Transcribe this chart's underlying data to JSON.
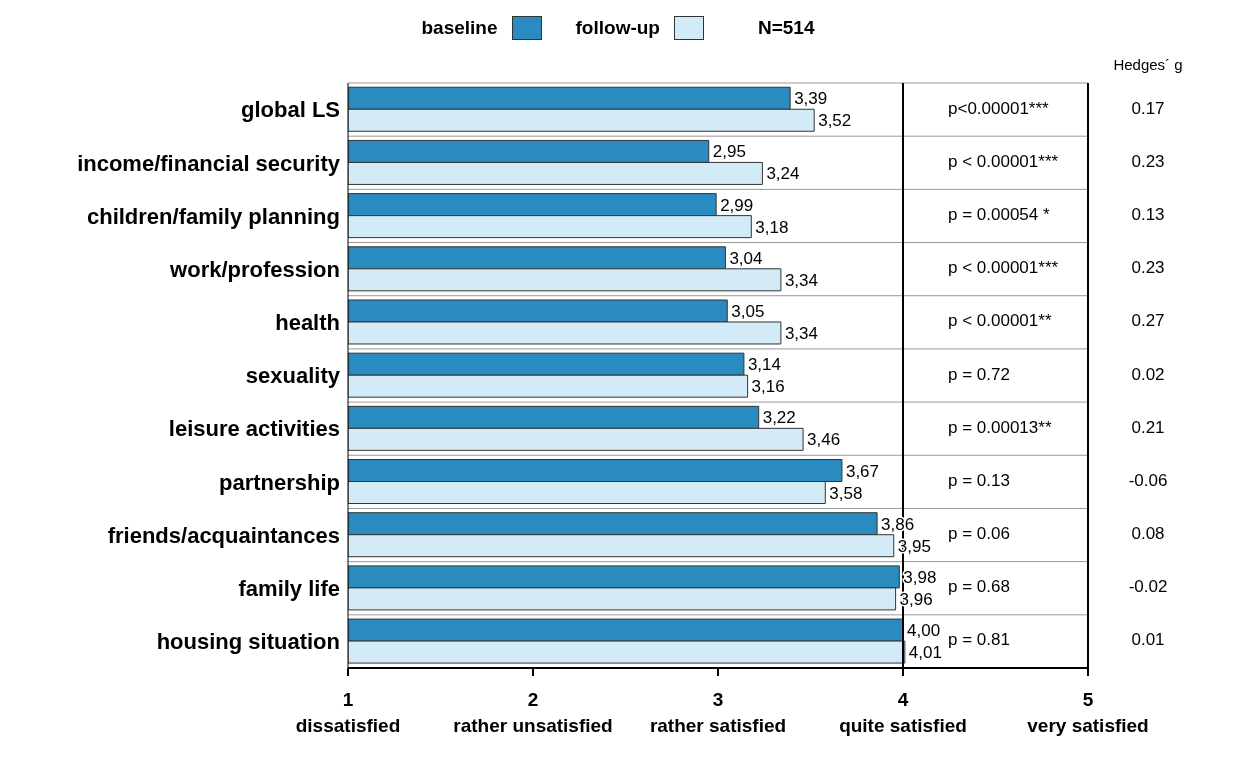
{
  "chart_data": {
    "type": "bar",
    "orientation": "horizontal",
    "subtitle": "N=514",
    "categories": [
      "global LS",
      "income/financial security",
      "children/family planning",
      "work/profession",
      "health",
      "sexuality",
      "leisure activities",
      "partnership",
      "friends/acquaintances",
      "family life",
      "housing situation"
    ],
    "series": [
      {
        "name": "baseline",
        "color": "#2a8bc0",
        "values": [
          3.39,
          2.95,
          2.99,
          3.04,
          3.05,
          3.14,
          3.22,
          3.67,
          3.86,
          3.98,
          4.0
        ],
        "value_labels": [
          "3,39",
          "2,95",
          "2,99",
          "3,04",
          "3,05",
          "3,14",
          "3,22",
          "3,67",
          "3,86",
          "3,98",
          "4,00"
        ]
      },
      {
        "name": "follow-up",
        "color": "#d3ebf7",
        "values": [
          3.52,
          3.24,
          3.18,
          3.34,
          3.34,
          3.16,
          3.46,
          3.58,
          3.95,
          3.96,
          4.01
        ],
        "value_labels": [
          "3,52",
          "3,24",
          "3,18",
          "3,34",
          "3,34",
          "3,16",
          "3,46",
          "3,58",
          "3,95",
          "3,96",
          "4,01"
        ]
      }
    ],
    "xlim": [
      1,
      5
    ],
    "xticks": [
      {
        "value": 1,
        "label": "1\ndissatisfied"
      },
      {
        "value": 2,
        "label": "2\nrather unsatisfied"
      },
      {
        "value": 3,
        "label": "3\nrather satisfied"
      },
      {
        "value": 4,
        "label": "4\nquite satisfied"
      },
      {
        "value": 5,
        "label": "5\nvery satisfied"
      }
    ],
    "ref_lines": [
      {
        "axis": "x",
        "value": 4,
        "color": "#000000"
      }
    ],
    "grid": "y",
    "legend": "top",
    "annotations": [
      "Hedges´ g",
      "p<0.00001***",
      "0.17",
      "p < 0.00001***",
      "0.23",
      "p = 0.00054 *",
      "0.13",
      "p < 0.00001***",
      "0.23",
      "p < 0.00001**",
      "0.27",
      "p = 0.72",
      "0.02",
      "p = 0.00013**",
      "0.21",
      "p = 0.13",
      "-0.06",
      "p = 0.06",
      "0.08",
      "p = 0.68",
      "-0.02",
      "p = 0.81",
      "0.01"
    ]
  }
}
